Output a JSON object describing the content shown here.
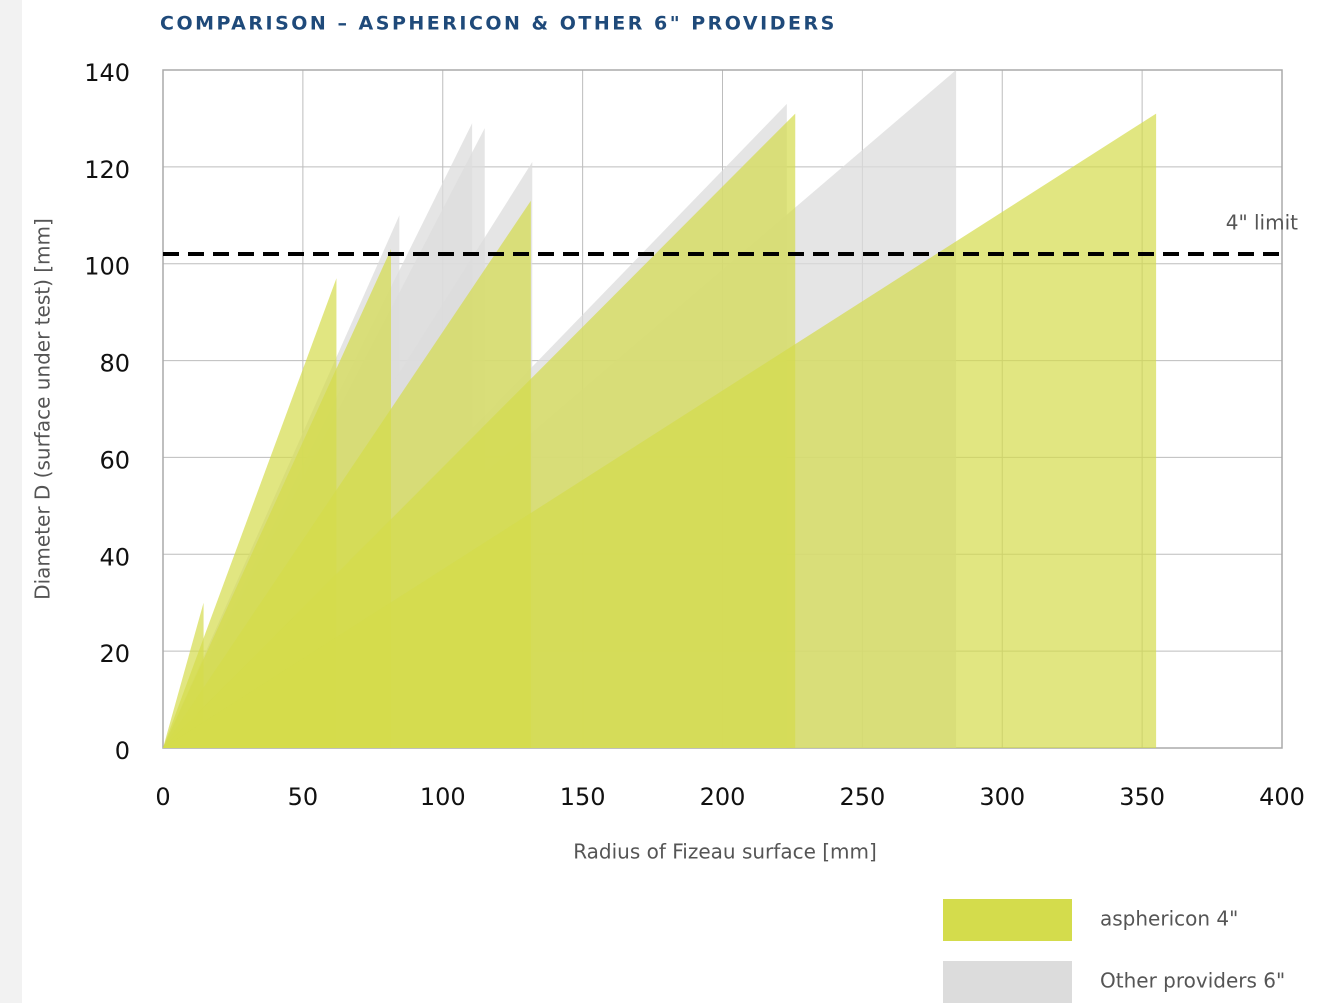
{
  "chart_data": {
    "type": "area",
    "title": "COMPARISON – ASPHERICON & OTHER 6\" PROVIDERS",
    "x_label": "Radius of Fizeau surface [mm]",
    "y_label": "Diameter D (surface under test) [mm]",
    "xlim": [
      0,
      400
    ],
    "xticks": [
      0,
      50,
      100,
      150,
      200,
      250,
      300,
      350,
      400
    ],
    "ylim": [
      0,
      140
    ],
    "yticks": [
      0,
      20,
      40,
      60,
      80,
      100,
      120,
      140
    ],
    "grid": true,
    "reference_line": {
      "value": 102,
      "label": "4\" limit"
    },
    "series": [
      {
        "name": "Other providers 6\"",
        "color": "#dcdcdc",
        "x": [
          84.5,
          110.5,
          115,
          132,
          223,
          283.5
        ],
        "values": [
          110,
          129,
          128,
          121,
          133,
          140
        ]
      },
      {
        "name": "asphericon 4\"",
        "color": "#d4dc4c",
        "x": [
          14.5,
          62,
          81.5,
          131.5,
          226,
          355
        ],
        "values": [
          30,
          97,
          103,
          113,
          131,
          131
        ]
      }
    ],
    "legend": "bottom-right"
  }
}
